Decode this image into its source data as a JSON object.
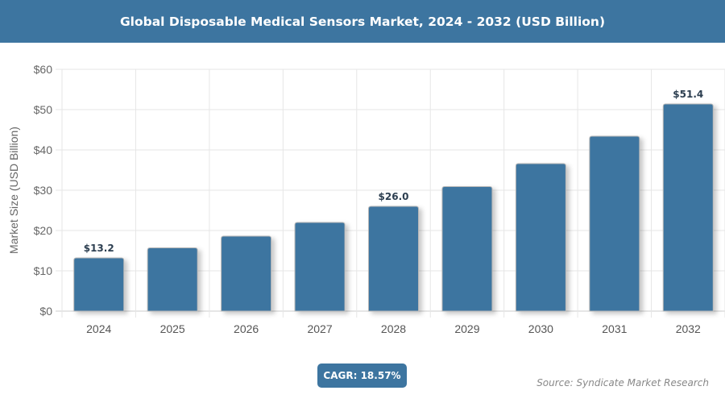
{
  "chart_data": {
    "type": "bar",
    "title": "Global Disposable Medical Sensors Market, 2024 - 2032 (USD Billion)",
    "ylabel": "Market Size (USD Billion)",
    "xlabel": "",
    "categories": [
      "2024",
      "2025",
      "2026",
      "2027",
      "2028",
      "2029",
      "2030",
      "2031",
      "2032"
    ],
    "values": [
      13.2,
      15.7,
      18.6,
      22.0,
      26.0,
      30.9,
      36.6,
      43.4,
      51.4
    ],
    "data_labels": {
      "0": "$13.2",
      "4": "$26.0",
      "8": "$51.4"
    },
    "ylim": [
      0,
      60
    ],
    "yticks": [
      "$0",
      "$10",
      "$20",
      "$30",
      "$40",
      "$50",
      "$60"
    ],
    "grid": true,
    "bar_color": "#3d75a0"
  },
  "cagr": "CAGR: 18.57%",
  "source": "Source: Syndicate Market Research"
}
